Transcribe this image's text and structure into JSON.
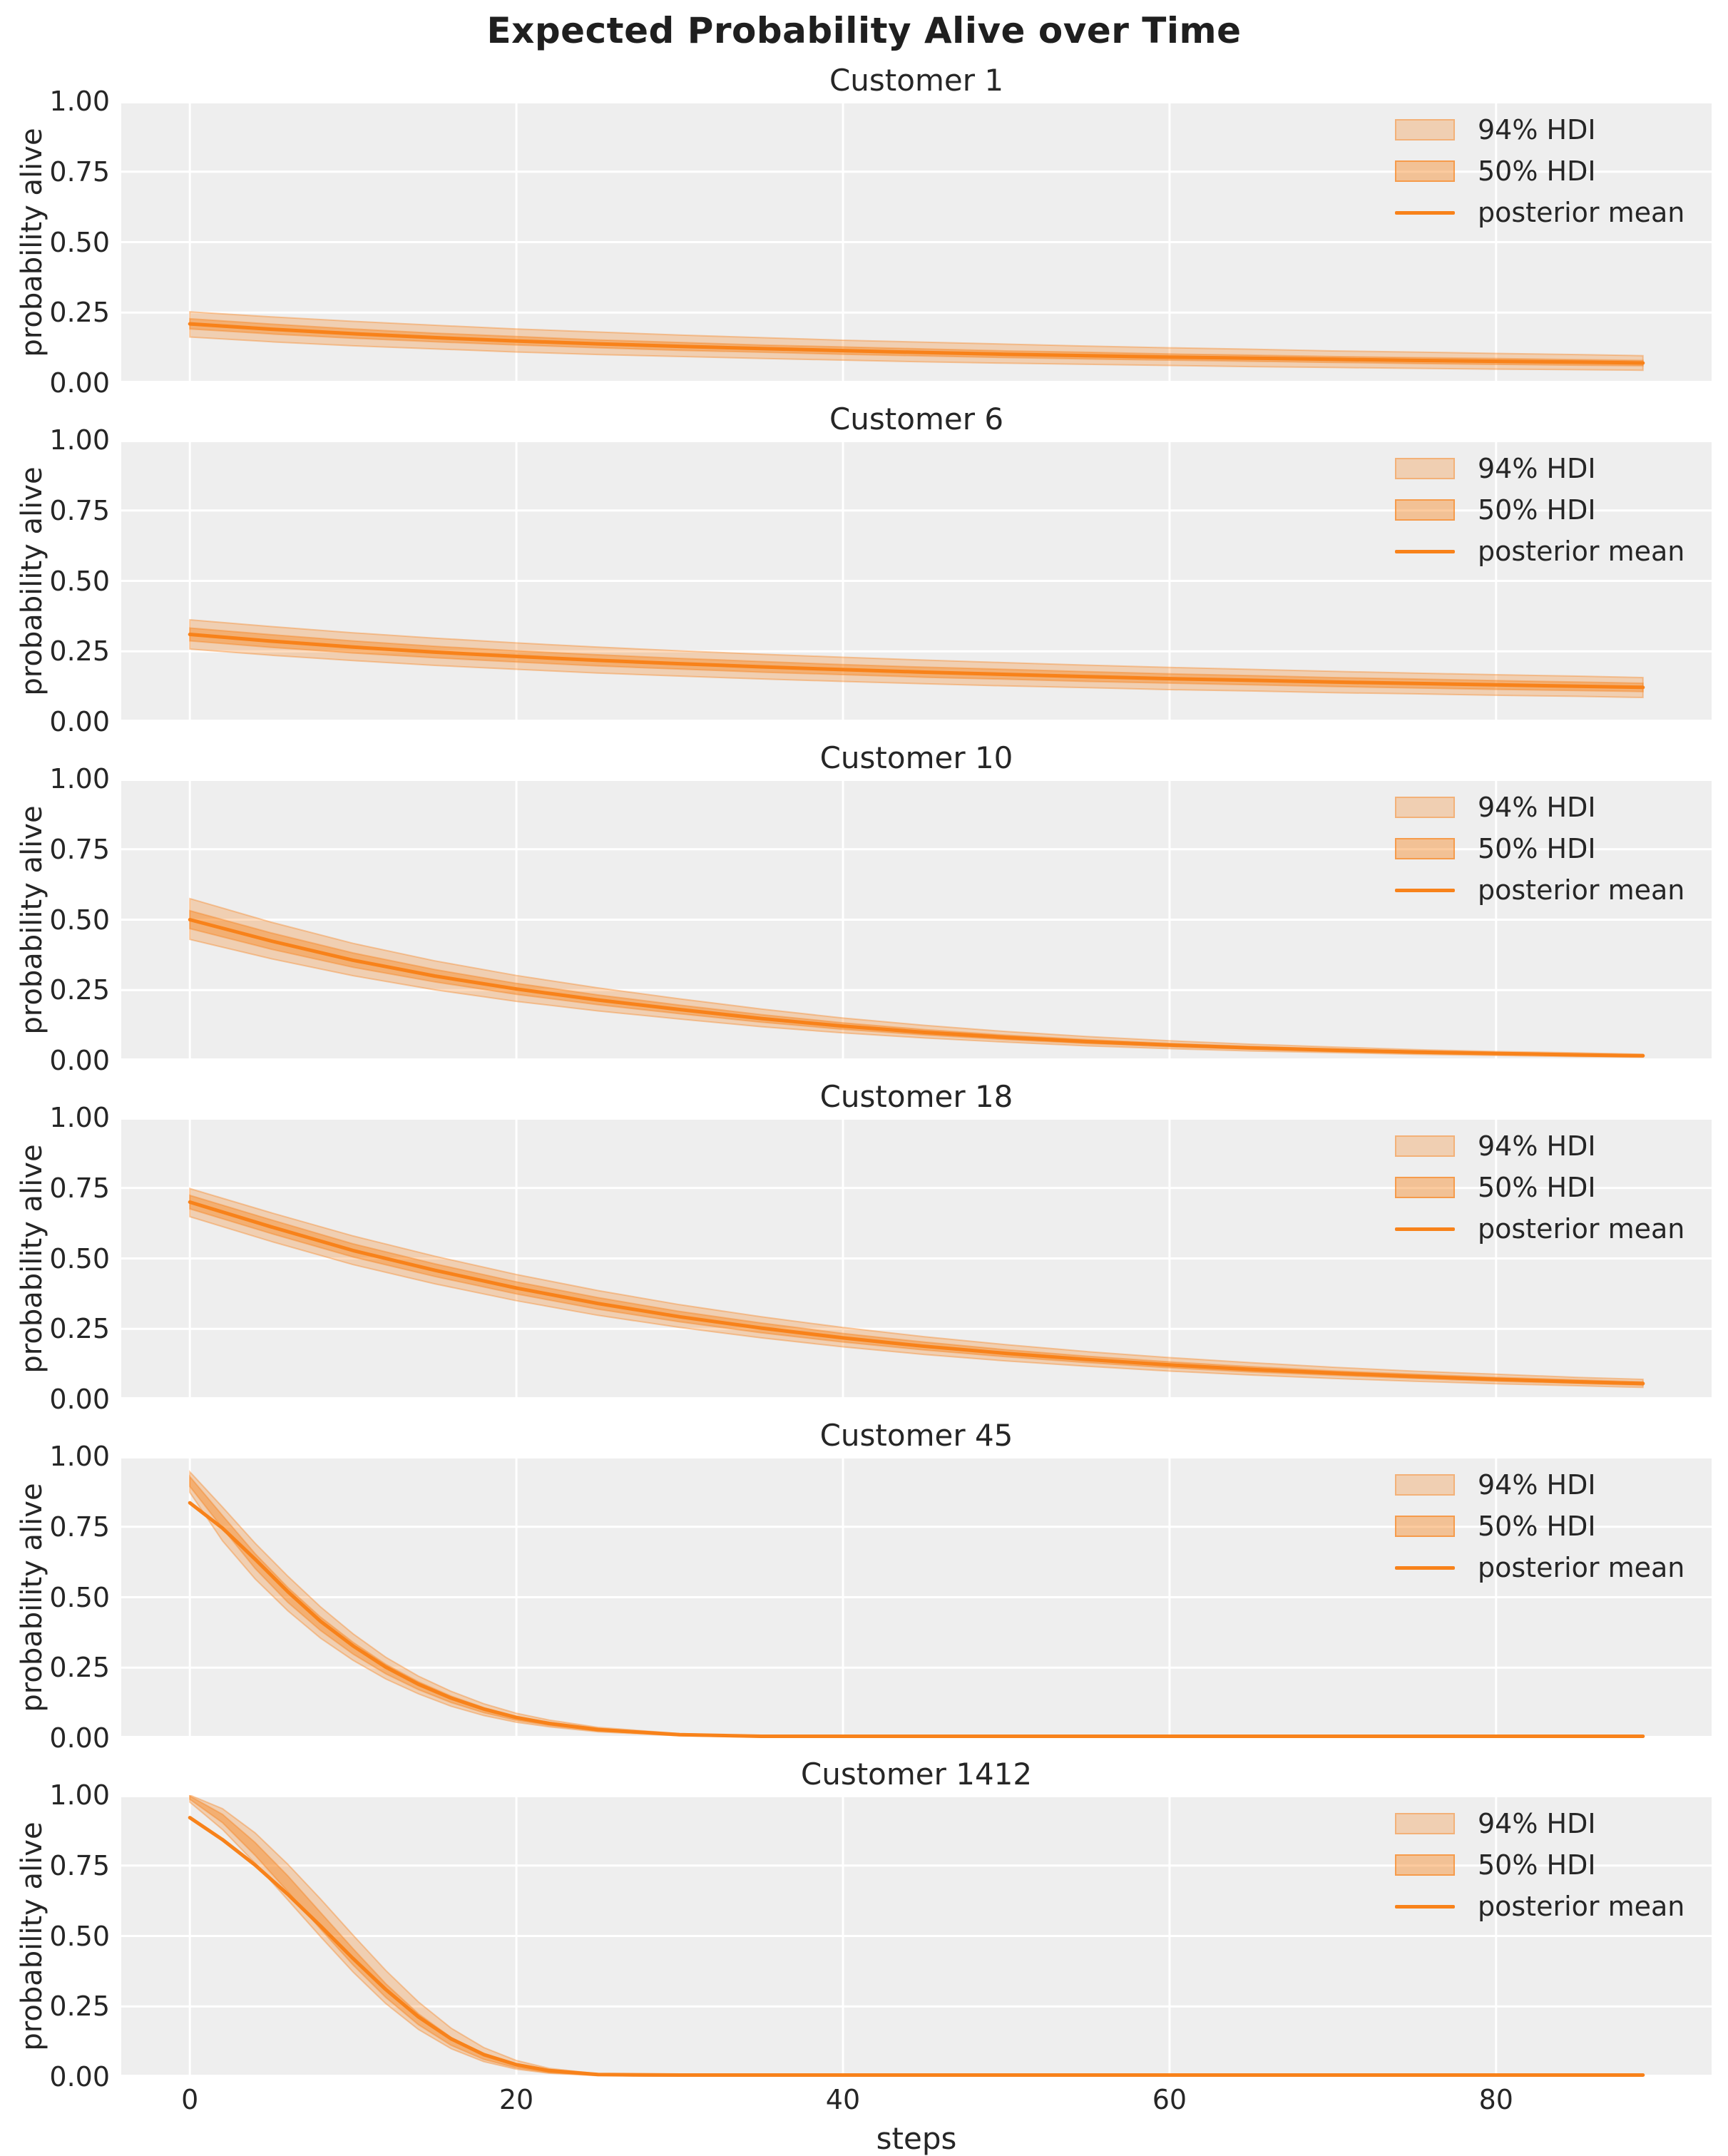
{
  "chart_data": {
    "type": "line",
    "title": "Expected Probability Alive over Time",
    "xlabel": "steps",
    "ylabel": "probability alive",
    "xlim": [
      -4.2,
      93.2
    ],
    "ylim": [
      0,
      1
    ],
    "grid": true,
    "legend_position": "upper right",
    "legend_entries": [
      "94% HDI",
      "50% HDI",
      "posterior mean"
    ],
    "xtick_labels": [
      "0",
      "20",
      "40",
      "60",
      "80"
    ],
    "xtick_values": [
      0,
      20,
      40,
      60,
      80
    ],
    "ytick_labels": [
      "0.00",
      "0.25",
      "0.50",
      "0.75",
      "1.00"
    ],
    "ytick_values": [
      0,
      0.25,
      0.5,
      0.75,
      1
    ],
    "colors": {
      "accent": "#f8821a",
      "plot_bg": "#eeeeee",
      "grid_line": "#ffffff",
      "text": "#262626",
      "band_94": "rgba(248,130,26,0.28)",
      "band_50": "rgba(248,130,26,0.42)",
      "band_edge": "rgba(248,130,26,0.38)"
    },
    "subplots": [
      {
        "title": "Customer 1",
        "x": [
          0,
          5,
          10,
          15,
          20,
          25,
          30,
          35,
          40,
          45,
          50,
          55,
          60,
          65,
          70,
          75,
          80,
          85,
          89
        ],
        "mean": [
          0.21,
          0.191,
          0.175,
          0.161,
          0.149,
          0.139,
          0.13,
          0.122,
          0.115,
          0.108,
          0.102,
          0.097,
          0.092,
          0.088,
          0.084,
          0.08,
          0.077,
          0.074,
          0.071
        ],
        "hdi94_lower": [
          0.163,
          0.146,
          0.132,
          0.121,
          0.11,
          0.101,
          0.094,
          0.087,
          0.081,
          0.075,
          0.07,
          0.066,
          0.062,
          0.058,
          0.055,
          0.052,
          0.049,
          0.047,
          0.045
        ],
        "hdi94_upper": [
          0.253,
          0.235,
          0.219,
          0.205,
          0.192,
          0.181,
          0.17,
          0.161,
          0.152,
          0.145,
          0.138,
          0.131,
          0.125,
          0.12,
          0.114,
          0.11,
          0.105,
          0.101,
          0.097
        ],
        "hdi50_lower": [
          0.192,
          0.174,
          0.159,
          0.146,
          0.135,
          0.125,
          0.116,
          0.109,
          0.102,
          0.096,
          0.09,
          0.085,
          0.081,
          0.077,
          0.073,
          0.069,
          0.066,
          0.063,
          0.061
        ],
        "hdi50_upper": [
          0.228,
          0.209,
          0.192,
          0.177,
          0.165,
          0.153,
          0.144,
          0.135,
          0.128,
          0.121,
          0.114,
          0.109,
          0.103,
          0.099,
          0.094,
          0.09,
          0.087,
          0.083,
          0.08
        ]
      },
      {
        "title": "Customer 6",
        "x": [
          0,
          5,
          10,
          15,
          20,
          25,
          30,
          35,
          40,
          45,
          50,
          55,
          60,
          65,
          70,
          75,
          80,
          85,
          89
        ],
        "mean": [
          0.31,
          0.286,
          0.265,
          0.247,
          0.232,
          0.218,
          0.206,
          0.195,
          0.185,
          0.176,
          0.168,
          0.16,
          0.153,
          0.147,
          0.141,
          0.136,
          0.131,
          0.126,
          0.122
        ],
        "hdi94_lower": [
          0.258,
          0.236,
          0.217,
          0.2,
          0.186,
          0.173,
          0.162,
          0.152,
          0.143,
          0.135,
          0.127,
          0.121,
          0.114,
          0.109,
          0.103,
          0.099,
          0.094,
          0.09,
          0.086
        ],
        "hdi94_upper": [
          0.362,
          0.338,
          0.316,
          0.297,
          0.28,
          0.265,
          0.252,
          0.24,
          0.229,
          0.219,
          0.21,
          0.201,
          0.193,
          0.186,
          0.179,
          0.173,
          0.167,
          0.162,
          0.157
        ],
        "hdi50_lower": [
          0.287,
          0.264,
          0.244,
          0.227,
          0.212,
          0.198,
          0.187,
          0.176,
          0.167,
          0.158,
          0.151,
          0.143,
          0.137,
          0.131,
          0.125,
          0.12,
          0.115,
          0.111,
          0.107
        ],
        "hdi50_upper": [
          0.333,
          0.309,
          0.287,
          0.268,
          0.252,
          0.238,
          0.225,
          0.214,
          0.203,
          0.194,
          0.186,
          0.178,
          0.17,
          0.164,
          0.157,
          0.152,
          0.146,
          0.141,
          0.137
        ]
      },
      {
        "title": "Customer 10",
        "x": [
          0,
          5,
          10,
          15,
          20,
          25,
          30,
          35,
          40,
          45,
          50,
          55,
          60,
          65,
          70,
          75,
          80,
          85,
          89
        ],
        "mean": [
          0.5,
          0.424,
          0.356,
          0.3,
          0.254,
          0.215,
          0.181,
          0.149,
          0.122,
          0.1,
          0.082,
          0.067,
          0.055,
          0.045,
          0.037,
          0.03,
          0.025,
          0.02,
          0.017
        ],
        "hdi94_lower": [
          0.43,
          0.361,
          0.301,
          0.251,
          0.21,
          0.176,
          0.147,
          0.12,
          0.098,
          0.08,
          0.065,
          0.052,
          0.042,
          0.034,
          0.028,
          0.022,
          0.018,
          0.014,
          0.012
        ],
        "hdi94_upper": [
          0.575,
          0.491,
          0.416,
          0.354,
          0.302,
          0.258,
          0.219,
          0.183,
          0.151,
          0.125,
          0.103,
          0.085,
          0.07,
          0.058,
          0.048,
          0.039,
          0.032,
          0.027,
          0.022
        ],
        "hdi50_lower": [
          0.468,
          0.395,
          0.331,
          0.279,
          0.235,
          0.198,
          0.166,
          0.136,
          0.111,
          0.091,
          0.074,
          0.06,
          0.049,
          0.04,
          0.032,
          0.026,
          0.021,
          0.017,
          0.014
        ],
        "hdi50_upper": [
          0.532,
          0.453,
          0.382,
          0.323,
          0.274,
          0.233,
          0.197,
          0.163,
          0.134,
          0.11,
          0.09,
          0.074,
          0.061,
          0.05,
          0.041,
          0.034,
          0.028,
          0.023,
          0.019
        ]
      },
      {
        "title": "Customer 18",
        "x": [
          0,
          5,
          10,
          15,
          20,
          25,
          30,
          35,
          40,
          45,
          50,
          55,
          60,
          65,
          70,
          75,
          80,
          85,
          89
        ],
        "mean": [
          0.7,
          0.612,
          0.528,
          0.458,
          0.395,
          0.34,
          0.293,
          0.253,
          0.218,
          0.188,
          0.163,
          0.141,
          0.122,
          0.106,
          0.093,
          0.081,
          0.071,
          0.062,
          0.056
        ],
        "hdi94_lower": [
          0.648,
          0.56,
          0.478,
          0.41,
          0.35,
          0.298,
          0.255,
          0.218,
          0.186,
          0.159,
          0.136,
          0.117,
          0.1,
          0.086,
          0.074,
          0.064,
          0.055,
          0.048,
          0.042
        ],
        "hdi94_upper": [
          0.748,
          0.662,
          0.58,
          0.508,
          0.443,
          0.386,
          0.336,
          0.293,
          0.255,
          0.222,
          0.194,
          0.169,
          0.148,
          0.13,
          0.114,
          0.1,
          0.089,
          0.078,
          0.071
        ],
        "hdi50_lower": [
          0.676,
          0.588,
          0.505,
          0.436,
          0.374,
          0.32,
          0.275,
          0.236,
          0.203,
          0.175,
          0.151,
          0.13,
          0.112,
          0.097,
          0.085,
          0.074,
          0.064,
          0.056,
          0.05
        ],
        "hdi50_upper": [
          0.724,
          0.637,
          0.552,
          0.481,
          0.417,
          0.361,
          0.312,
          0.271,
          0.234,
          0.203,
          0.176,
          0.153,
          0.133,
          0.116,
          0.101,
          0.089,
          0.078,
          0.069,
          0.062
        ]
      },
      {
        "title": "Customer 45",
        "x": [
          0,
          2,
          4,
          6,
          8,
          10,
          12,
          14,
          16,
          18,
          20,
          22,
          25,
          30,
          35,
          40,
          50,
          70,
          89
        ],
        "mean": [
          0.835,
          0.745,
          0.635,
          0.52,
          0.415,
          0.327,
          0.252,
          0.191,
          0.142,
          0.103,
          0.073,
          0.052,
          0.03,
          0.012,
          0.005,
          0.002,
          0.001,
          0.001,
          0.001
        ],
        "hdi94_lower": [
          0.872,
          0.7,
          0.565,
          0.452,
          0.355,
          0.276,
          0.21,
          0.157,
          0.113,
          0.08,
          0.056,
          0.04,
          0.022,
          0.008,
          0.003,
          0.001,
          0.0,
          0.0,
          0.0
        ],
        "hdi94_upper": [
          0.945,
          0.82,
          0.692,
          0.575,
          0.466,
          0.37,
          0.287,
          0.22,
          0.166,
          0.122,
          0.088,
          0.064,
          0.038,
          0.016,
          0.007,
          0.003,
          0.001,
          0.001,
          0.001
        ],
        "hdi50_lower": [
          0.893,
          0.745,
          0.602,
          0.482,
          0.382,
          0.298,
          0.228,
          0.172,
          0.126,
          0.09,
          0.063,
          0.045,
          0.025,
          0.01,
          0.004,
          0.002,
          0.001,
          0.0,
          0.0
        ],
        "hdi50_upper": [
          0.928,
          0.79,
          0.655,
          0.535,
          0.43,
          0.34,
          0.262,
          0.2,
          0.149,
          0.108,
          0.077,
          0.056,
          0.032,
          0.013,
          0.006,
          0.002,
          0.001,
          0.001,
          0.001
        ]
      },
      {
        "title": "Customer 1412",
        "x": [
          0,
          2,
          4,
          6,
          8,
          10,
          12,
          14,
          16,
          18,
          20,
          22,
          25,
          30,
          40,
          60,
          89
        ],
        "mean": [
          0.92,
          0.842,
          0.752,
          0.648,
          0.536,
          0.42,
          0.31,
          0.213,
          0.135,
          0.079,
          0.043,
          0.022,
          0.008,
          0.002,
          0.001,
          0.0,
          0.0
        ],
        "hdi94_lower": [
          0.975,
          0.878,
          0.758,
          0.628,
          0.498,
          0.372,
          0.26,
          0.168,
          0.1,
          0.054,
          0.027,
          0.013,
          0.004,
          0.001,
          0.0,
          0.0,
          0.0
        ],
        "hdi94_upper": [
          1.0,
          0.952,
          0.866,
          0.755,
          0.632,
          0.503,
          0.378,
          0.266,
          0.173,
          0.104,
          0.058,
          0.03,
          0.011,
          0.003,
          0.001,
          0.0,
          0.0
        ],
        "hdi50_lower": [
          0.985,
          0.902,
          0.786,
          0.658,
          0.525,
          0.397,
          0.282,
          0.185,
          0.112,
          0.062,
          0.032,
          0.015,
          0.005,
          0.001,
          0.0,
          0.0,
          0.0
        ],
        "hdi50_upper": [
          0.997,
          0.932,
          0.832,
          0.714,
          0.584,
          0.455,
          0.331,
          0.224,
          0.14,
          0.081,
          0.044,
          0.022,
          0.008,
          0.002,
          0.0,
          0.0,
          0.0
        ]
      }
    ]
  }
}
